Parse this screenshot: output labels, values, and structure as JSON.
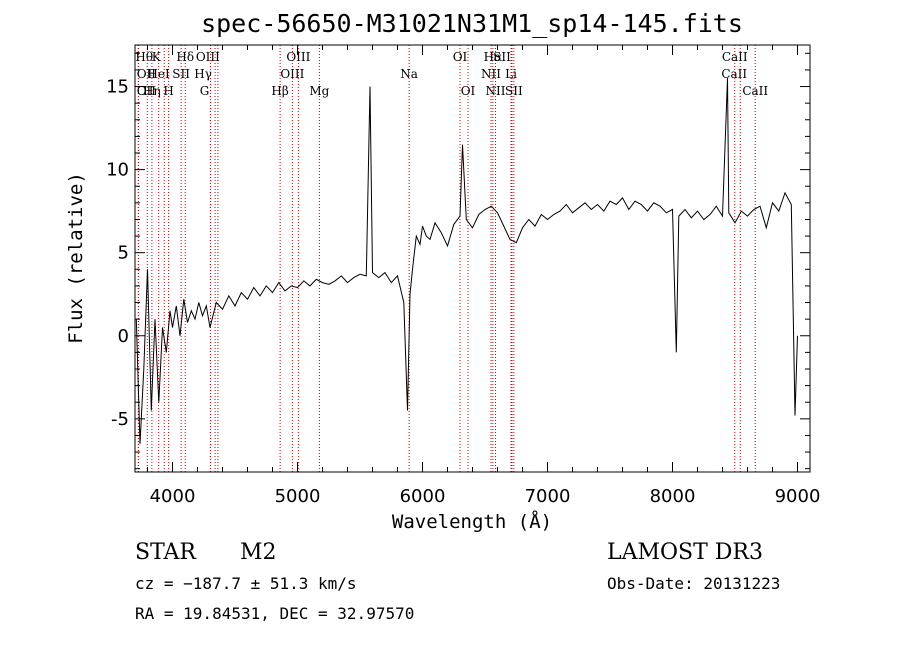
{
  "chart_data": {
    "type": "line",
    "title": "spec-56650-M31021N31M1_sp14-145.fits",
    "xlabel": "Wavelength (Å)",
    "ylabel": "Flux (relative)",
    "xlim": [
      3700,
      9100
    ],
    "ylim": [
      -8.2,
      17.5
    ],
    "xticks": [
      4000,
      5000,
      6000,
      7000,
      8000,
      9000
    ],
    "yticks": [
      -5,
      0,
      5,
      10,
      15
    ],
    "grid": false,
    "line_color": "#000000",
    "marker_color": "#cc0000",
    "spectrum": {
      "name": "",
      "x": [
        3710,
        3740,
        3770,
        3800,
        3830,
        3860,
        3890,
        3920,
        3950,
        3980,
        4000,
        4030,
        4060,
        4090,
        4120,
        4150,
        4180,
        4210,
        4240,
        4270,
        4300,
        4350,
        4400,
        4450,
        4500,
        4550,
        4600,
        4650,
        4700,
        4750,
        4800,
        4850,
        4900,
        4950,
        5000,
        5050,
        5100,
        5150,
        5200,
        5250,
        5300,
        5350,
        5400,
        5450,
        5500,
        5550,
        5580,
        5600,
        5650,
        5700,
        5750,
        5800,
        5850,
        5880,
        5900,
        5920,
        5950,
        5980,
        6000,
        6030,
        6060,
        6100,
        6150,
        6200,
        6250,
        6300,
        6320,
        6350,
        6400,
        6450,
        6500,
        6550,
        6600,
        6650,
        6700,
        6750,
        6800,
        6850,
        6900,
        6950,
        7000,
        7050,
        7100,
        7150,
        7200,
        7250,
        7300,
        7350,
        7400,
        7450,
        7500,
        7550,
        7600,
        7650,
        7700,
        7750,
        7800,
        7850,
        7900,
        7950,
        8000,
        8030,
        8050,
        8100,
        8150,
        8200,
        8250,
        8300,
        8350,
        8400,
        8440,
        8450,
        8500,
        8550,
        8600,
        8650,
        8700,
        8750,
        8800,
        8850,
        8900,
        8950,
        8980,
        9000
      ],
      "y": [
        1.0,
        -6.5,
        -2.0,
        4.0,
        -4.5,
        1.0,
        -4.0,
        0.5,
        -1.0,
        1.5,
        0.5,
        1.8,
        0.0,
        2.2,
        0.8,
        1.5,
        1.0,
        2.0,
        1.2,
        1.8,
        0.5,
        2.0,
        1.6,
        2.4,
        1.8,
        2.6,
        2.2,
        2.9,
        2.4,
        3.0,
        2.6,
        3.2,
        2.7,
        3.0,
        2.9,
        3.3,
        3.0,
        3.4,
        3.2,
        3.1,
        3.3,
        3.6,
        3.2,
        3.5,
        3.7,
        3.6,
        15.0,
        3.8,
        3.5,
        3.8,
        3.2,
        3.6,
        2.0,
        -4.5,
        2.5,
        4.0,
        6.0,
        5.5,
        6.6,
        6.0,
        5.8,
        6.8,
        6.2,
        5.4,
        6.7,
        7.2,
        11.5,
        7.0,
        6.5,
        7.3,
        7.6,
        7.8,
        7.4,
        6.6,
        5.8,
        5.6,
        6.5,
        7.0,
        6.6,
        7.3,
        7.0,
        7.3,
        7.5,
        7.9,
        7.4,
        7.7,
        8.0,
        7.6,
        7.9,
        7.5,
        8.1,
        7.9,
        8.3,
        7.6,
        8.1,
        7.9,
        7.5,
        8.0,
        7.8,
        7.4,
        7.6,
        -1.0,
        7.2,
        7.6,
        7.1,
        7.5,
        7.0,
        7.3,
        7.8,
        7.2,
        15.5,
        7.4,
        6.8,
        7.5,
        7.2,
        7.6,
        7.8,
        6.5,
        8.0,
        7.5,
        8.6,
        7.9,
        -4.8,
        0.0
      ]
    },
    "lines": [
      {
        "label": "Hθ",
        "x": 3798,
        "row": 1,
        "dx": -3
      },
      {
        "label": "OII",
        "x": 3727,
        "row": 2,
        "dx": 8
      },
      {
        "label": "OII",
        "x": 3727,
        "row": 3,
        "dx": 8
      },
      {
        "label": "K",
        "x": 3934,
        "row": 1,
        "dx": -8
      },
      {
        "label": "HeI",
        "x": 3889,
        "row": 2,
        "dx": 0
      },
      {
        "label": "Hη",
        "x": 3835,
        "row": 3,
        "dx": 0
      },
      {
        "label": "H",
        "x": 3969,
        "row": 3,
        "dx": 0
      },
      {
        "label": "Hδ",
        "x": 4102,
        "row": 1,
        "dx": 0
      },
      {
        "label": "SII",
        "x": 4069,
        "row": 2,
        "dx": 0
      },
      {
        "label": "OIII",
        "x": 4363,
        "row": 1,
        "dx": -10
      },
      {
        "label": "Hγ",
        "x": 4341,
        "row": 2,
        "dx": -12
      },
      {
        "label": "G",
        "x": 4304,
        "row": 3,
        "dx": -6
      },
      {
        "label": "OIII",
        "x": 5007,
        "row": 1,
        "dx": 0
      },
      {
        "label": "OIII",
        "x": 4959,
        "row": 2,
        "dx": 0
      },
      {
        "label": "Hβ",
        "x": 4861,
        "row": 3,
        "dx": 0
      },
      {
        "label": "Mg",
        "x": 5175,
        "row": 3,
        "dx": 0
      },
      {
        "label": "Na",
        "x": 5893,
        "row": 2,
        "dx": 0
      },
      {
        "label": "OI",
        "x": 6300,
        "row": 1,
        "dx": 0
      },
      {
        "label": "OI",
        "x": 6364,
        "row": 3,
        "dx": 0
      },
      {
        "label": "Hα",
        "x": 6563,
        "row": 1,
        "dx": 0
      },
      {
        "label": "SII",
        "x": 6716,
        "row": 1,
        "dx": -10
      },
      {
        "label": "NII",
        "x": 6548,
        "row": 2,
        "dx": 0
      },
      {
        "label": "Li",
        "x": 6708,
        "row": 2,
        "dx": 0
      },
      {
        "label": "NII",
        "x": 6584,
        "row": 3,
        "dx": 0
      },
      {
        "label": "SII",
        "x": 6731,
        "row": 3,
        "dx": 0
      },
      {
        "label": "CaII",
        "x": 8498,
        "row": 1,
        "dx": 0
      },
      {
        "label": "CaII",
        "x": 8542,
        "row": 2,
        "dx": -6
      },
      {
        "label": "CaII",
        "x": 8662,
        "row": 3,
        "dx": 0
      }
    ]
  },
  "info": {
    "class": "STAR",
    "subclass": "M2",
    "survey": "LAMOST DR3",
    "cz": "cz = −187.7 ± 51.3 km/s",
    "obs_date": "Obs-Date: 20131223",
    "radec": "RA =  19.84531, DEC =  32.97570"
  }
}
